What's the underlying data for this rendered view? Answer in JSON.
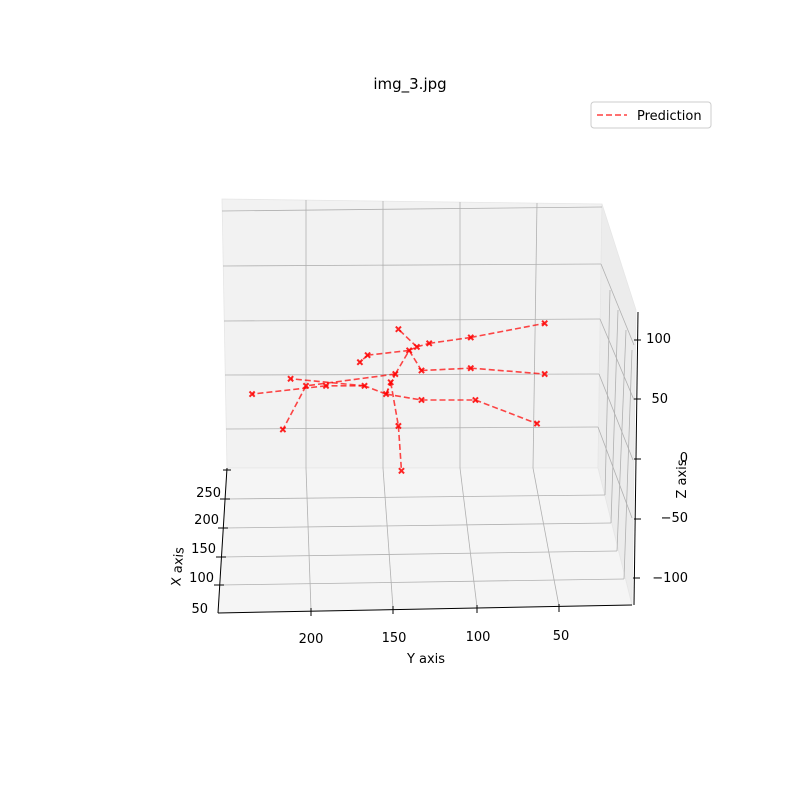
{
  "chart_data": {
    "type": "scatter",
    "projection": "3d",
    "title": "img_3.jpg",
    "xlabel": "X axis",
    "ylabel": "Y axis",
    "zlabel": "Z axis",
    "x_ticks": [
      "50",
      "100",
      "150",
      "200",
      "250"
    ],
    "y_ticks": [
      "200",
      "150",
      "100",
      "50"
    ],
    "z_ticks": [
      "100",
      "50",
      "0",
      "−50",
      "−100"
    ],
    "grid": true,
    "legend": {
      "location": "upper-right",
      "entries": [
        "Prediction"
      ]
    },
    "series": [
      {
        "name": "Prediction",
        "color": "#ff0000",
        "linestyle": "dashed",
        "marker": "x",
        "points": [
          {
            "id": "hip",
            "y": 148,
            "z": 55
          },
          {
            "id": "r-hip",
            "y": 125,
            "z": 50
          },
          {
            "id": "r-knee",
            "y": 90,
            "z": 50
          },
          {
            "id": "r-ankle",
            "y": 50,
            "z": 30
          },
          {
            "id": "l-hip",
            "y": 162,
            "z": 62
          },
          {
            "id": "l-knee",
            "y": 187,
            "z": 62
          },
          {
            "id": "l-ankle",
            "y": 235,
            "z": 55
          },
          {
            "id": "spine",
            "y": 142,
            "z": 72
          },
          {
            "id": "thorax",
            "y": 133,
            "z": 92
          },
          {
            "id": "neck",
            "y": 128,
            "z": 95
          },
          {
            "id": "head",
            "y": 140,
            "z": 110
          },
          {
            "id": "l-shoulder",
            "y": 160,
            "z": 88
          },
          {
            "id": "l-elbow",
            "y": 165,
            "z": 82
          },
          {
            "id": "l-wrist",
            "y": 145,
            "z": 65
          },
          {
            "id": "l-hand",
            "y": 140,
            "z": 28
          },
          {
            "id": "l-tip",
            "y": 138,
            "z": -10
          },
          {
            "id": "r-shoulder",
            "y": 125,
            "z": 75
          },
          {
            "id": "r-elbow",
            "y": 93,
            "z": 77
          },
          {
            "id": "r-wrist",
            "y": 45,
            "z": 72
          },
          {
            "id": "r-collar",
            "y": 120,
            "z": 98
          },
          {
            "id": "r-upper",
            "y": 93,
            "z": 103
          },
          {
            "id": "r-arm-tip",
            "y": 45,
            "z": 115
          },
          {
            "id": "l-arm-a",
            "y": 200,
            "z": 62
          },
          {
            "id": "l-arm-b",
            "y": 215,
            "z": 25
          },
          {
            "id": "l-arm-c",
            "y": 210,
            "z": 68
          }
        ],
        "edges": [
          [
            "hip",
            "r-hip"
          ],
          [
            "r-hip",
            "r-knee"
          ],
          [
            "r-knee",
            "r-ankle"
          ],
          [
            "hip",
            "l-hip"
          ],
          [
            "l-hip",
            "l-knee"
          ],
          [
            "l-knee",
            "l-ankle"
          ],
          [
            "hip",
            "spine"
          ],
          [
            "spine",
            "thorax"
          ],
          [
            "thorax",
            "neck"
          ],
          [
            "neck",
            "head"
          ],
          [
            "thorax",
            "l-shoulder"
          ],
          [
            "l-shoulder",
            "l-elbow"
          ],
          [
            "hip",
            "l-wrist"
          ],
          [
            "l-wrist",
            "l-hand"
          ],
          [
            "l-hand",
            "l-tip"
          ],
          [
            "thorax",
            "r-shoulder"
          ],
          [
            "r-shoulder",
            "r-elbow"
          ],
          [
            "r-elbow",
            "r-wrist"
          ],
          [
            "neck",
            "r-collar"
          ],
          [
            "r-collar",
            "r-upper"
          ],
          [
            "r-upper",
            "r-arm-tip"
          ],
          [
            "spine",
            "l-arm-a"
          ],
          [
            "l-arm-a",
            "l-arm-b"
          ],
          [
            "l-hip",
            "l-arm-c"
          ]
        ]
      }
    ]
  }
}
